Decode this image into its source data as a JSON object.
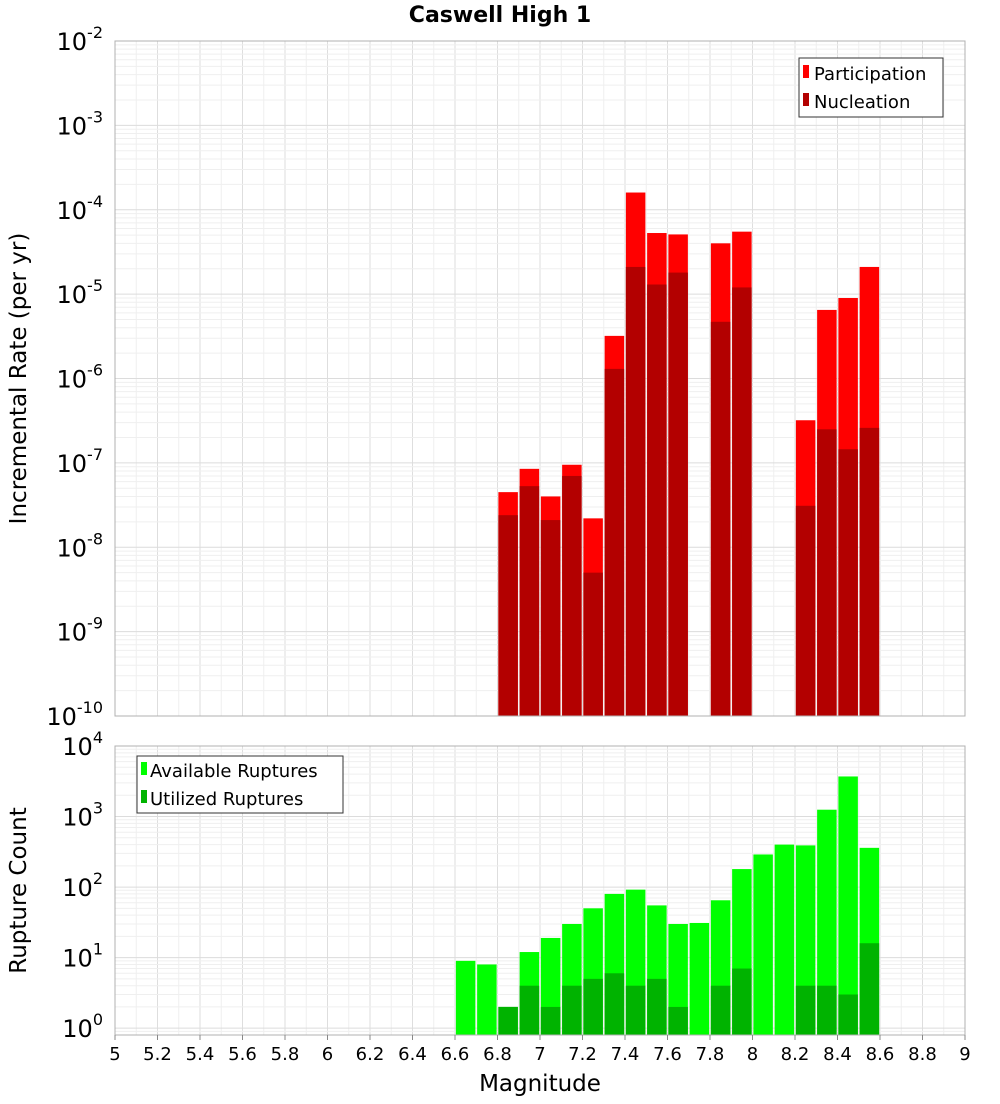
{
  "chart_data": [
    {
      "type": "bar",
      "title": "Caswell High 1",
      "ylabel": "Incremental Rate (per yr)",
      "yscale": "log",
      "ylim": [
        1e-10,
        0.01
      ],
      "y_ticks": [
        {
          "base": "10",
          "exp": "-2",
          "value": 0.01
        },
        {
          "base": "10",
          "exp": "-3",
          "value": 0.001
        },
        {
          "base": "10",
          "exp": "-4",
          "value": 0.0001
        },
        {
          "base": "10",
          "exp": "-5",
          "value": 1e-05
        },
        {
          "base": "10",
          "exp": "-6",
          "value": 1e-06
        },
        {
          "base": "10",
          "exp": "-7",
          "value": 1e-07
        },
        {
          "base": "10",
          "exp": "-8",
          "value": 1e-08
        },
        {
          "base": "10",
          "exp": "-9",
          "value": 1e-09
        },
        {
          "base": "10",
          "exp": "-10",
          "value": 1e-10
        }
      ],
      "legend": {
        "placement": "top-right"
      },
      "grid": true,
      "series": [
        {
          "name": "Participation",
          "color": "#ff0000",
          "points": [
            [
              6.85,
              4.5e-08
            ],
            [
              6.95,
              8.5e-08
            ],
            [
              7.05,
              4e-08
            ],
            [
              7.15,
              9.5e-08
            ],
            [
              7.25,
              2.2e-08
            ],
            [
              7.35,
              3.2e-06
            ],
            [
              7.45,
              0.00016
            ],
            [
              7.55,
              5.3e-05
            ],
            [
              7.65,
              5.1e-05
            ],
            [
              7.85,
              4e-05
            ],
            [
              7.95,
              5.5e-05
            ],
            [
              8.25,
              3.2e-07
            ],
            [
              8.35,
              6.5e-06
            ],
            [
              8.45,
              9e-06
            ],
            [
              8.55,
              2.1e-05
            ]
          ]
        },
        {
          "name": "Nucleation",
          "color": "#b30000",
          "points": [
            [
              6.85,
              2.4e-08
            ],
            [
              6.95,
              5.3e-08
            ],
            [
              7.05,
              2.1e-08
            ],
            [
              7.15,
              7e-08
            ],
            [
              7.25,
              5e-09
            ],
            [
              7.35,
              1.3e-06
            ],
            [
              7.45,
              2.1e-05
            ],
            [
              7.55,
              1.3e-05
            ],
            [
              7.65,
              1.8e-05
            ],
            [
              7.85,
              4.7e-06
            ],
            [
              7.95,
              1.2e-05
            ],
            [
              8.25,
              3.1e-08
            ],
            [
              8.35,
              2.5e-07
            ],
            [
              8.45,
              1.45e-07
            ],
            [
              8.55,
              2.6e-07
            ]
          ]
        }
      ]
    },
    {
      "type": "bar",
      "xlabel": "Magnitude",
      "ylabel": "Rupture Count",
      "xlim": [
        5,
        9
      ],
      "x_ticks": [
        "5",
        "5.2",
        "5.4",
        "5.6",
        "5.8",
        "6",
        "6.2",
        "6.4",
        "6.6",
        "6.8",
        "7",
        "7.2",
        "7.4",
        "7.6",
        "7.8",
        "8",
        "8.2",
        "8.4",
        "8.6",
        "8.8",
        "9"
      ],
      "yscale": "log",
      "ylim": [
        0.8,
        10000
      ],
      "y_ticks": [
        {
          "base": "10",
          "exp": "4",
          "value": 10000
        },
        {
          "base": "10",
          "exp": "3",
          "value": 1000
        },
        {
          "base": "10",
          "exp": "2",
          "value": 100
        },
        {
          "base": "10",
          "exp": "1",
          "value": 10
        },
        {
          "base": "10",
          "exp": "0",
          "value": 1
        }
      ],
      "legend": {
        "placement": "top-left"
      },
      "grid": true,
      "series": [
        {
          "name": "Available Ruptures",
          "color": "#00ff00",
          "points": [
            [
              6.65,
              9
            ],
            [
              6.75,
              8
            ],
            [
              6.85,
              2
            ],
            [
              6.95,
              12
            ],
            [
              7.05,
              19
            ],
            [
              7.15,
              30
            ],
            [
              7.25,
              50
            ],
            [
              7.35,
              80
            ],
            [
              7.45,
              92
            ],
            [
              7.55,
              55
            ],
            [
              7.65,
              30
            ],
            [
              7.75,
              31
            ],
            [
              7.85,
              65
            ],
            [
              7.95,
              180
            ],
            [
              8.05,
              290
            ],
            [
              8.15,
              400
            ],
            [
              8.25,
              390
            ],
            [
              8.35,
              1250
            ],
            [
              8.45,
              3700
            ],
            [
              8.55,
              360
            ]
          ]
        },
        {
          "name": "Utilized Ruptures",
          "color": "#00b300",
          "points": [
            [
              6.85,
              2
            ],
            [
              6.95,
              4
            ],
            [
              7.05,
              2
            ],
            [
              7.15,
              4
            ],
            [
              7.25,
              5
            ],
            [
              7.35,
              6
            ],
            [
              7.45,
              4
            ],
            [
              7.55,
              5
            ],
            [
              7.65,
              2
            ],
            [
              7.85,
              4
            ],
            [
              7.95,
              7
            ],
            [
              8.25,
              4
            ],
            [
              8.35,
              4
            ],
            [
              8.45,
              3
            ],
            [
              8.55,
              16
            ]
          ]
        }
      ]
    }
  ]
}
